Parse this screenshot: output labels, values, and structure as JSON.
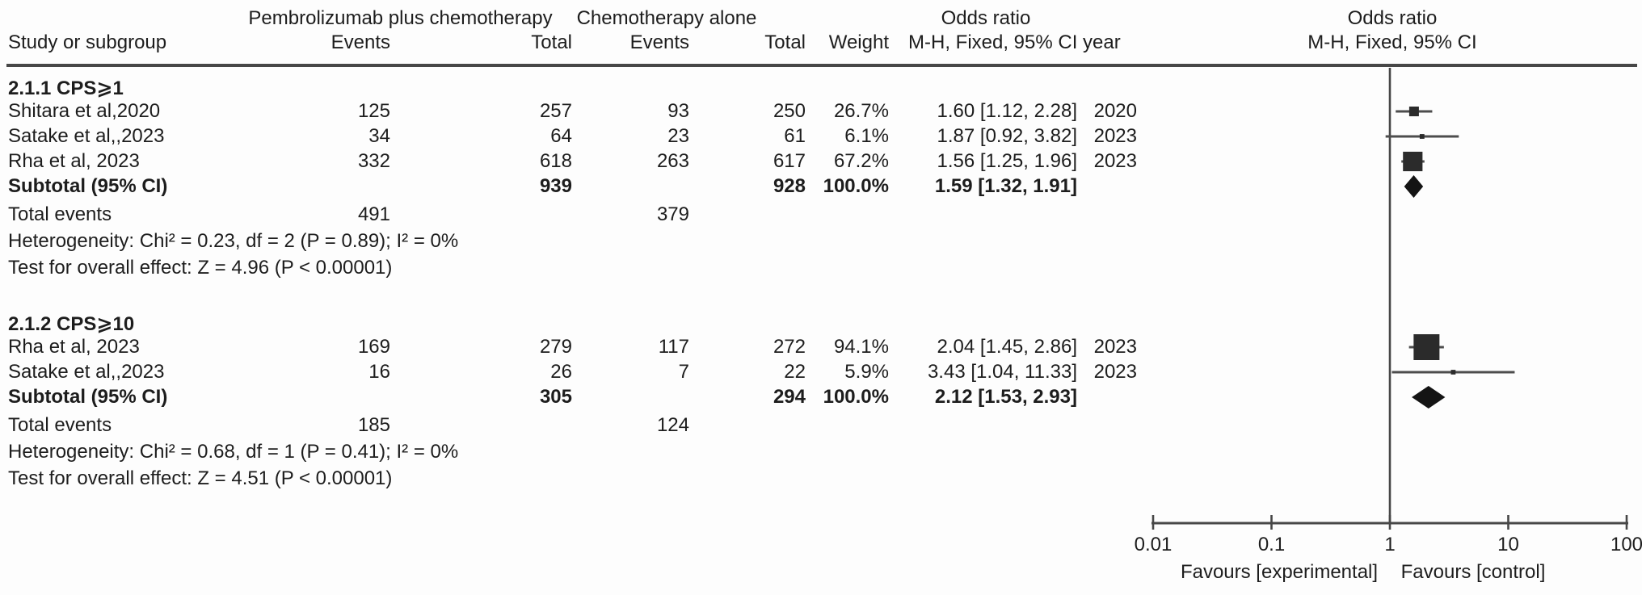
{
  "palette": {
    "text": "#1d1d1d",
    "rule": "#474747",
    "ci_line": "#4d4d4d",
    "marker": "#2b2b2b",
    "diamond": "#141414"
  },
  "header": {
    "group1_label": "Pembrolizumab plus chemotherapy",
    "group2_label": "Chemotherapy alone",
    "or_left_title": "Odds ratio",
    "or_left_sub": "M-H, Fixed, 95% CI year",
    "or_right_title": "Odds ratio",
    "or_right_sub": "M-H, Fixed, 95% CI",
    "col_study": "Study or subgroup",
    "col_events": "Events",
    "col_total": "Total",
    "col_weight": "Weight"
  },
  "chart_data": {
    "type": "forest",
    "effect_measure": "Odds ratio",
    "method": "M-H, Fixed, 95% CI",
    "x_axis": {
      "scale": "log10",
      "ticks": [
        0.01,
        0.1,
        1,
        10,
        100
      ],
      "tick_labels": [
        "0.01",
        "0.1",
        "1",
        "10",
        "100"
      ],
      "null_value": 1,
      "favours_left": "Favours [experimental]",
      "favours_right": "Favours [control]"
    },
    "subgroups": [
      {
        "label": "2.1.1 CPS⩾1",
        "studies": [
          {
            "study": "Shitara et al,2020",
            "events1": "125",
            "total1": "257",
            "events2": "93",
            "total2": "250",
            "weight": "26.7%",
            "or_text": "1.60 [1.12, 2.28]",
            "year": "2020",
            "or": 1.6,
            "ci_low": 1.12,
            "ci_high": 2.28,
            "weight_pct": 26.7
          },
          {
            "study": "Satake et al,,2023",
            "events1": "34",
            "total1": "64",
            "events2": "23",
            "total2": "61",
            "weight": "6.1%",
            "or_text": "1.87 [0.92, 3.82]",
            "year": "2023",
            "or": 1.87,
            "ci_low": 0.92,
            "ci_high": 3.82,
            "weight_pct": 6.1
          },
          {
            "study": "Rha et al, 2023",
            "events1": "332",
            "total1": "618",
            "events2": "263",
            "total2": "617",
            "weight": "67.2%",
            "or_text": "1.56 [1.25, 1.96]",
            "year": "2023",
            "or": 1.56,
            "ci_low": 1.25,
            "ci_high": 1.96,
            "weight_pct": 67.2
          }
        ],
        "subtotal": {
          "label": "Subtotal (95% CI)",
          "total1": "939",
          "total2": "928",
          "weight": "100.0%",
          "or_text": "1.59 [1.32, 1.91]",
          "or": 1.59,
          "ci_low": 1.32,
          "ci_high": 1.91
        },
        "total_events": {
          "label": "Total events",
          "events1": "491",
          "events2": "379"
        },
        "heterogeneity": "Heterogeneity: Chi² = 0.23, df = 2 (P = 0.89); I² = 0%",
        "overall_effect": "Test for overall effect: Z = 4.96 (P < 0.00001)"
      },
      {
        "label": "2.1.2 CPS⩾10",
        "studies": [
          {
            "study": "Rha et al, 2023",
            "events1": "169",
            "total1": "279",
            "events2": "117",
            "total2": "272",
            "weight": "94.1%",
            "or_text": "2.04 [1.45, 2.86]",
            "year": "2023",
            "or": 2.04,
            "ci_low": 1.45,
            "ci_high": 2.86,
            "weight_pct": 94.1
          },
          {
            "study": "Satake et al,,2023",
            "events1": "16",
            "total1": "26",
            "events2": "7",
            "total2": "22",
            "weight": "5.9%",
            "or_text": "3.43 [1.04, 11.33]",
            "year": "2023",
            "or": 3.43,
            "ci_low": 1.04,
            "ci_high": 11.33,
            "weight_pct": 5.9
          }
        ],
        "subtotal": {
          "label": "Subtotal (95% CI)",
          "total1": "305",
          "total2": "294",
          "weight": "100.0%",
          "or_text": "2.12 [1.53, 2.93]",
          "or": 2.12,
          "ci_low": 1.53,
          "ci_high": 2.93
        },
        "total_events": {
          "label": "Total events",
          "events1": "185",
          "events2": "124"
        },
        "heterogeneity": "Heterogeneity: Chi² = 0.68, df = 1 (P = 0.41); I² = 0%",
        "overall_effect": "Test for overall effect: Z = 4.51 (P < 0.00001)"
      }
    ]
  }
}
